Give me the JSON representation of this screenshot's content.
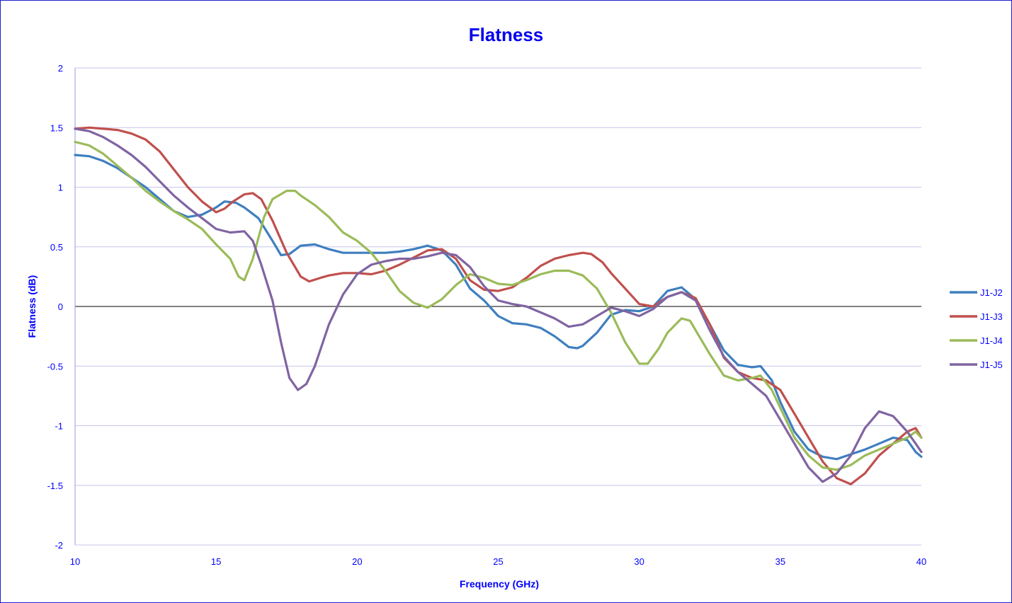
{
  "chart_data": {
    "type": "line",
    "title": "Flatness",
    "xlabel": "Frequency (GHz)",
    "ylabel": "Flatness (dB)",
    "xlim": [
      10,
      40
    ],
    "ylim": [
      -2,
      2
    ],
    "x_ticks": [
      10,
      15,
      20,
      25,
      30,
      35,
      40
    ],
    "y_ticks": [
      2,
      1.5,
      1,
      0.5,
      0,
      -0.5,
      -1,
      -1.5,
      -2
    ],
    "grid": true,
    "legend_position": "right",
    "series": [
      {
        "name": "J1-J2",
        "color": "#3f7fbf",
        "points": [
          [
            10,
            1.27
          ],
          [
            10.5,
            1.26
          ],
          [
            11,
            1.22
          ],
          [
            11.5,
            1.16
          ],
          [
            12,
            1.08
          ],
          [
            12.5,
            1.0
          ],
          [
            13,
            0.9
          ],
          [
            13.5,
            0.8
          ],
          [
            14,
            0.75
          ],
          [
            14.5,
            0.77
          ],
          [
            15,
            0.83
          ],
          [
            15.3,
            0.88
          ],
          [
            15.7,
            0.87
          ],
          [
            16,
            0.83
          ],
          [
            16.5,
            0.74
          ],
          [
            17,
            0.55
          ],
          [
            17.3,
            0.43
          ],
          [
            17.6,
            0.44
          ],
          [
            18,
            0.51
          ],
          [
            18.5,
            0.52
          ],
          [
            19,
            0.48
          ],
          [
            19.5,
            0.45
          ],
          [
            20,
            0.45
          ],
          [
            20.5,
            0.45
          ],
          [
            21,
            0.45
          ],
          [
            21.5,
            0.46
          ],
          [
            22,
            0.48
          ],
          [
            22.5,
            0.51
          ],
          [
            23,
            0.47
          ],
          [
            23.5,
            0.35
          ],
          [
            24,
            0.15
          ],
          [
            24.5,
            0.05
          ],
          [
            25,
            -0.08
          ],
          [
            25.5,
            -0.14
          ],
          [
            26,
            -0.15
          ],
          [
            26.5,
            -0.18
          ],
          [
            27,
            -0.25
          ],
          [
            27.5,
            -0.34
          ],
          [
            27.8,
            -0.35
          ],
          [
            28,
            -0.33
          ],
          [
            28.5,
            -0.22
          ],
          [
            29,
            -0.07
          ],
          [
            29.5,
            -0.03
          ],
          [
            30,
            -0.04
          ],
          [
            30.5,
            0.0
          ],
          [
            31,
            0.13
          ],
          [
            31.5,
            0.16
          ],
          [
            32,
            0.06
          ],
          [
            32.5,
            -0.15
          ],
          [
            33,
            -0.37
          ],
          [
            33.5,
            -0.49
          ],
          [
            34,
            -0.51
          ],
          [
            34.3,
            -0.5
          ],
          [
            34.7,
            -0.62
          ],
          [
            35,
            -0.8
          ],
          [
            35.5,
            -1.05
          ],
          [
            36,
            -1.2
          ],
          [
            36.5,
            -1.26
          ],
          [
            37,
            -1.28
          ],
          [
            37.5,
            -1.24
          ],
          [
            38,
            -1.2
          ],
          [
            38.5,
            -1.15
          ],
          [
            39,
            -1.1
          ],
          [
            39.5,
            -1.12
          ],
          [
            39.8,
            -1.22
          ],
          [
            40,
            -1.26
          ]
        ]
      },
      {
        "name": "J1-J3",
        "color": "#c0504d",
        "points": [
          [
            10,
            1.49
          ],
          [
            10.5,
            1.5
          ],
          [
            11,
            1.49
          ],
          [
            11.5,
            1.48
          ],
          [
            12,
            1.45
          ],
          [
            12.5,
            1.4
          ],
          [
            13,
            1.3
          ],
          [
            13.5,
            1.15
          ],
          [
            14,
            1.0
          ],
          [
            14.5,
            0.88
          ],
          [
            15,
            0.79
          ],
          [
            15.3,
            0.82
          ],
          [
            15.6,
            0.88
          ],
          [
            16,
            0.94
          ],
          [
            16.3,
            0.95
          ],
          [
            16.6,
            0.9
          ],
          [
            17,
            0.72
          ],
          [
            17.5,
            0.45
          ],
          [
            18,
            0.25
          ],
          [
            18.3,
            0.21
          ],
          [
            18.7,
            0.24
          ],
          [
            19,
            0.26
          ],
          [
            19.5,
            0.28
          ],
          [
            20,
            0.28
          ],
          [
            20.5,
            0.27
          ],
          [
            21,
            0.3
          ],
          [
            21.5,
            0.35
          ],
          [
            22,
            0.41
          ],
          [
            22.5,
            0.47
          ],
          [
            23,
            0.48
          ],
          [
            23.5,
            0.4
          ],
          [
            24,
            0.22
          ],
          [
            24.5,
            0.14
          ],
          [
            25,
            0.13
          ],
          [
            25.5,
            0.16
          ],
          [
            26,
            0.24
          ],
          [
            26.5,
            0.34
          ],
          [
            27,
            0.4
          ],
          [
            27.5,
            0.43
          ],
          [
            28,
            0.45
          ],
          [
            28.3,
            0.44
          ],
          [
            28.7,
            0.37
          ],
          [
            29,
            0.28
          ],
          [
            29.5,
            0.15
          ],
          [
            30,
            0.02
          ],
          [
            30.5,
            0.0
          ],
          [
            31,
            0.08
          ],
          [
            31.5,
            0.12
          ],
          [
            32,
            0.07
          ],
          [
            32.5,
            -0.15
          ],
          [
            33,
            -0.43
          ],
          [
            33.5,
            -0.55
          ],
          [
            34,
            -0.6
          ],
          [
            34.5,
            -0.62
          ],
          [
            35,
            -0.7
          ],
          [
            35.5,
            -0.9
          ],
          [
            36,
            -1.1
          ],
          [
            36.5,
            -1.3
          ],
          [
            37,
            -1.44
          ],
          [
            37.5,
            -1.49
          ],
          [
            38,
            -1.4
          ],
          [
            38.5,
            -1.25
          ],
          [
            39,
            -1.15
          ],
          [
            39.5,
            -1.05
          ],
          [
            39.8,
            -1.02
          ],
          [
            40,
            -1.1
          ]
        ]
      },
      {
        "name": "J1-J4",
        "color": "#9bbb59",
        "points": [
          [
            10,
            1.38
          ],
          [
            10.5,
            1.35
          ],
          [
            11,
            1.28
          ],
          [
            11.5,
            1.18
          ],
          [
            12,
            1.08
          ],
          [
            12.5,
            0.97
          ],
          [
            13,
            0.88
          ],
          [
            13.5,
            0.8
          ],
          [
            14,
            0.73
          ],
          [
            14.5,
            0.65
          ],
          [
            15,
            0.52
          ],
          [
            15.5,
            0.4
          ],
          [
            15.8,
            0.25
          ],
          [
            16,
            0.22
          ],
          [
            16.3,
            0.4
          ],
          [
            16.7,
            0.75
          ],
          [
            17,
            0.9
          ],
          [
            17.5,
            0.97
          ],
          [
            17.8,
            0.97
          ],
          [
            18,
            0.93
          ],
          [
            18.5,
            0.85
          ],
          [
            19,
            0.75
          ],
          [
            19.5,
            0.62
          ],
          [
            20,
            0.55
          ],
          [
            20.5,
            0.45
          ],
          [
            21,
            0.3
          ],
          [
            21.5,
            0.13
          ],
          [
            22,
            0.03
          ],
          [
            22.5,
            -0.01
          ],
          [
            23,
            0.06
          ],
          [
            23.5,
            0.18
          ],
          [
            24,
            0.27
          ],
          [
            24.5,
            0.24
          ],
          [
            25,
            0.19
          ],
          [
            25.5,
            0.18
          ],
          [
            26,
            0.22
          ],
          [
            26.5,
            0.27
          ],
          [
            27,
            0.3
          ],
          [
            27.5,
            0.3
          ],
          [
            28,
            0.26
          ],
          [
            28.5,
            0.15
          ],
          [
            29,
            -0.05
          ],
          [
            29.5,
            -0.3
          ],
          [
            30,
            -0.48
          ],
          [
            30.3,
            -0.48
          ],
          [
            30.7,
            -0.35
          ],
          [
            31,
            -0.22
          ],
          [
            31.5,
            -0.1
          ],
          [
            31.8,
            -0.12
          ],
          [
            32,
            -0.2
          ],
          [
            32.5,
            -0.4
          ],
          [
            33,
            -0.58
          ],
          [
            33.5,
            -0.62
          ],
          [
            34,
            -0.6
          ],
          [
            34.3,
            -0.58
          ],
          [
            34.7,
            -0.7
          ],
          [
            35,
            -0.85
          ],
          [
            35.5,
            -1.1
          ],
          [
            36,
            -1.25
          ],
          [
            36.5,
            -1.35
          ],
          [
            37,
            -1.37
          ],
          [
            37.5,
            -1.33
          ],
          [
            38,
            -1.25
          ],
          [
            38.5,
            -1.2
          ],
          [
            39,
            -1.15
          ],
          [
            39.5,
            -1.1
          ],
          [
            39.8,
            -1.05
          ],
          [
            40,
            -1.1
          ]
        ]
      },
      {
        "name": "J1-J5",
        "color": "#8064a2",
        "points": [
          [
            10,
            1.49
          ],
          [
            10.5,
            1.47
          ],
          [
            11,
            1.42
          ],
          [
            11.5,
            1.35
          ],
          [
            12,
            1.27
          ],
          [
            12.5,
            1.17
          ],
          [
            13,
            1.05
          ],
          [
            13.5,
            0.93
          ],
          [
            14,
            0.83
          ],
          [
            14.5,
            0.74
          ],
          [
            15,
            0.65
          ],
          [
            15.5,
            0.62
          ],
          [
            16,
            0.63
          ],
          [
            16.3,
            0.55
          ],
          [
            16.6,
            0.35
          ],
          [
            17,
            0.05
          ],
          [
            17.3,
            -0.3
          ],
          [
            17.6,
            -0.6
          ],
          [
            17.9,
            -0.7
          ],
          [
            18.2,
            -0.65
          ],
          [
            18.5,
            -0.5
          ],
          [
            19,
            -0.15
          ],
          [
            19.5,
            0.1
          ],
          [
            20,
            0.27
          ],
          [
            20.5,
            0.35
          ],
          [
            21,
            0.38
          ],
          [
            21.5,
            0.4
          ],
          [
            22,
            0.4
          ],
          [
            22.5,
            0.42
          ],
          [
            23,
            0.45
          ],
          [
            23.5,
            0.43
          ],
          [
            24,
            0.33
          ],
          [
            24.5,
            0.17
          ],
          [
            25,
            0.05
          ],
          [
            25.5,
            0.02
          ],
          [
            26,
            0.0
          ],
          [
            26.5,
            -0.05
          ],
          [
            27,
            -0.1
          ],
          [
            27.5,
            -0.17
          ],
          [
            28,
            -0.15
          ],
          [
            28.5,
            -0.08
          ],
          [
            29,
            -0.01
          ],
          [
            29.5,
            -0.04
          ],
          [
            30,
            -0.08
          ],
          [
            30.5,
            -0.02
          ],
          [
            31,
            0.08
          ],
          [
            31.5,
            0.12
          ],
          [
            32,
            0.05
          ],
          [
            32.5,
            -0.2
          ],
          [
            33,
            -0.42
          ],
          [
            33.5,
            -0.55
          ],
          [
            34,
            -0.65
          ],
          [
            34.5,
            -0.75
          ],
          [
            35,
            -0.95
          ],
          [
            35.5,
            -1.15
          ],
          [
            36,
            -1.35
          ],
          [
            36.5,
            -1.47
          ],
          [
            37,
            -1.4
          ],
          [
            37.5,
            -1.25
          ],
          [
            38,
            -1.02
          ],
          [
            38.5,
            -0.88
          ],
          [
            39,
            -0.92
          ],
          [
            39.5,
            -1.05
          ],
          [
            39.8,
            -1.15
          ],
          [
            40,
            -1.22
          ]
        ]
      }
    ]
  }
}
